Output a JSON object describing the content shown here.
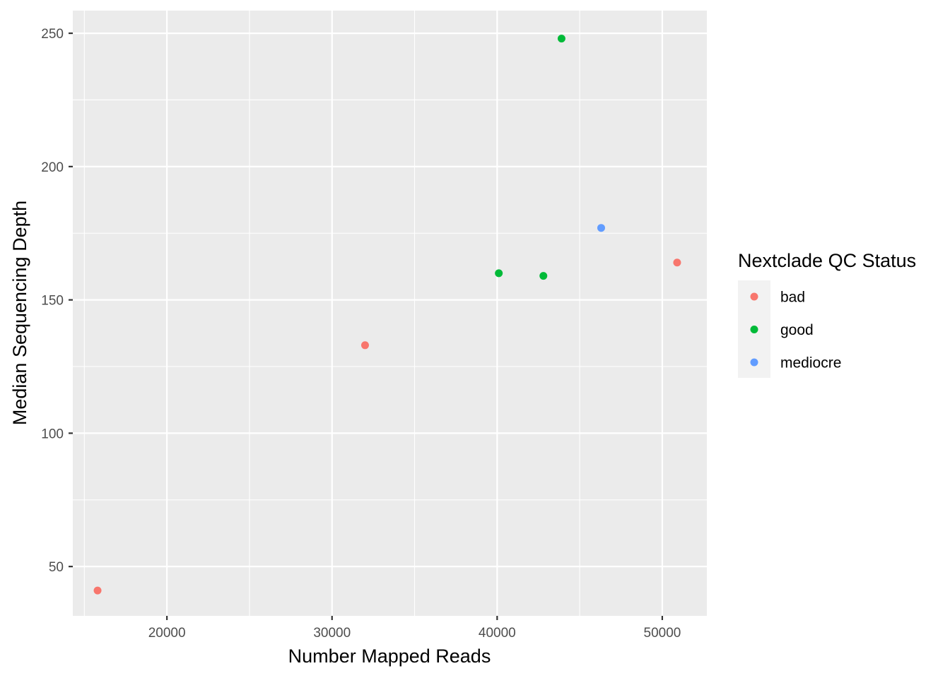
{
  "chart_data": {
    "type": "scatter",
    "title": "",
    "xlabel": "Number Mapped Reads",
    "ylabel": "Median Sequencing Depth",
    "xlim": [
      14300,
      52700
    ],
    "ylim": [
      31.5,
      258.5
    ],
    "x_ticks": [
      20000,
      30000,
      40000,
      50000
    ],
    "x_tick_labels": [
      "20000",
      "30000",
      "40000",
      "50000"
    ],
    "y_ticks": [
      50,
      100,
      150,
      200,
      250
    ],
    "y_tick_labels": [
      "50",
      "100",
      "150",
      "200",
      "250"
    ],
    "grid": true,
    "legend": {
      "title": "Nextclade QC Status",
      "placement": "right"
    },
    "series": [
      {
        "name": "bad",
        "color": "#F8766D",
        "points": [
          [
            15800,
            41
          ],
          [
            32000,
            133
          ],
          [
            50900,
            164
          ]
        ]
      },
      {
        "name": "good",
        "color": "#00BA38",
        "points": [
          [
            40100,
            160
          ],
          [
            42800,
            159
          ],
          [
            43900,
            248
          ]
        ]
      },
      {
        "name": "mediocre",
        "color": "#619CFF",
        "points": [
          [
            46300,
            177
          ]
        ]
      }
    ]
  }
}
